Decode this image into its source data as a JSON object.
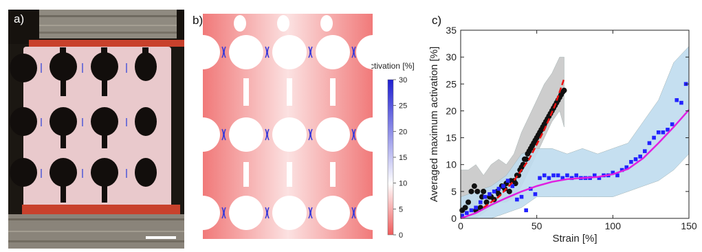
{
  "panels": {
    "a": "a)",
    "b": "b)",
    "c": "c)"
  },
  "colorbar": {
    "title": "Activation [%]",
    "ticks": [
      "30",
      "25",
      "20",
      "15",
      "10",
      "5",
      "0"
    ],
    "colors": {
      "low": "#ef5a5a",
      "mid": "#ffffff",
      "high": "#1f1fd1"
    }
  },
  "chart_data": {
    "type": "scatter",
    "xlabel": "Strain [%]",
    "ylabel": "Averaged maximum activation [%]",
    "xlim": [
      0,
      150
    ],
    "ylim": [
      0,
      35
    ],
    "xticks": [
      "0",
      "50",
      "100",
      "150"
    ],
    "yticks": [
      "0",
      "5",
      "10",
      "15",
      "20",
      "25",
      "30",
      "35"
    ],
    "grid": false,
    "series": [
      {
        "kind": "band",
        "color": "#c8c8c8",
        "x": [
          0,
          5,
          10,
          15,
          20,
          25,
          30,
          35,
          40,
          45,
          50,
          55,
          60,
          65,
          68
        ],
        "upper": [
          9,
          9,
          10,
          8,
          10,
          11,
          10,
          12,
          16,
          19,
          22,
          25,
          27,
          30,
          30
        ],
        "lower": [
          0,
          0,
          0,
          1,
          2,
          3,
          3,
          4,
          6,
          9,
          12,
          15,
          18,
          20,
          17
        ]
      },
      {
        "kind": "band",
        "color": "#bfdcef",
        "x": [
          0,
          10,
          20,
          30,
          40,
          50,
          60,
          70,
          80,
          90,
          100,
          110,
          120,
          130,
          140,
          150
        ],
        "upper": [
          4,
          5,
          6,
          8,
          12,
          13,
          13,
          12,
          13,
          12,
          13,
          14,
          18,
          22,
          29,
          32
        ],
        "lower": [
          0,
          0,
          0,
          1,
          2,
          4,
          4,
          4,
          4,
          4,
          4,
          5,
          6,
          7,
          9,
          12
        ]
      },
      {
        "kind": "markers",
        "marker": "circle",
        "color": "#111111",
        "x": [
          1,
          3,
          5,
          7,
          9,
          10,
          11,
          13,
          14,
          15,
          17,
          19,
          20,
          22,
          24,
          25,
          27,
          29,
          30,
          32,
          33,
          35,
          36,
          37,
          38,
          39,
          40,
          41,
          42,
          43,
          44,
          45,
          46,
          47,
          48,
          49,
          50,
          51,
          52,
          53,
          54,
          55,
          56,
          57,
          58,
          59,
          60,
          61,
          62,
          63,
          64,
          65,
          66,
          67,
          68
        ],
        "y": [
          1.5,
          2,
          3,
          5,
          6,
          1.5,
          5,
          2,
          4,
          5,
          3,
          4,
          4,
          3.5,
          5,
          4.5,
          6,
          5.5,
          6.5,
          5,
          7,
          7,
          6.5,
          8,
          8,
          9,
          9.5,
          10,
          11,
          11,
          12,
          12.5,
          13,
          13.5,
          14,
          14.5,
          15,
          15.5,
          16,
          16.5,
          17,
          17.5,
          18,
          18.5,
          19,
          19.5,
          20,
          20.5,
          21,
          21.5,
          22,
          22.5,
          23,
          23.5,
          23.8
        ]
      },
      {
        "kind": "markers",
        "marker": "square",
        "color": "#2222ff",
        "x": [
          1,
          4,
          7,
          10,
          13,
          16,
          19,
          22,
          25,
          28,
          31,
          34,
          37,
          40,
          43,
          46,
          49,
          52,
          55,
          58,
          61,
          64,
          67,
          70,
          73,
          76,
          79,
          82,
          85,
          88,
          91,
          94,
          97,
          100,
          103,
          106,
          109,
          112,
          115,
          118,
          121,
          124,
          127,
          130,
          133,
          136,
          139,
          142,
          145,
          148
        ],
        "y": [
          0.5,
          1,
          1.5,
          2,
          3,
          4,
          4.5,
          5,
          5.5,
          6,
          7,
          6,
          3.5,
          4,
          1.5,
          5.5,
          4.5,
          7.5,
          8,
          7.5,
          8,
          8,
          7.5,
          8,
          7.5,
          8,
          7.5,
          7.5,
          7.5,
          8,
          7.5,
          8,
          8,
          8.5,
          8,
          9,
          9.5,
          10.5,
          11,
          11.5,
          12.5,
          14,
          15,
          16,
          16,
          16.5,
          17.5,
          22,
          21.5,
          25
        ]
      },
      {
        "kind": "line",
        "style": "solid",
        "color": "#e020e0",
        "x": [
          0,
          10,
          20,
          30,
          40,
          50,
          60,
          70,
          80,
          90,
          100,
          110,
          120,
          130,
          140,
          150
        ],
        "y": [
          0,
          1,
          2.5,
          3.8,
          5,
          6,
          6.8,
          7.3,
          7.5,
          7.7,
          8.2,
          9.2,
          11.2,
          14,
          17,
          20.2
        ]
      },
      {
        "kind": "line",
        "style": "dashed",
        "color": "#ee1111",
        "x": [
          15,
          25,
          35,
          45,
          55,
          62,
          68
        ],
        "y": [
          2,
          4,
          7,
          11,
          16.5,
          21,
          26
        ]
      }
    ]
  }
}
